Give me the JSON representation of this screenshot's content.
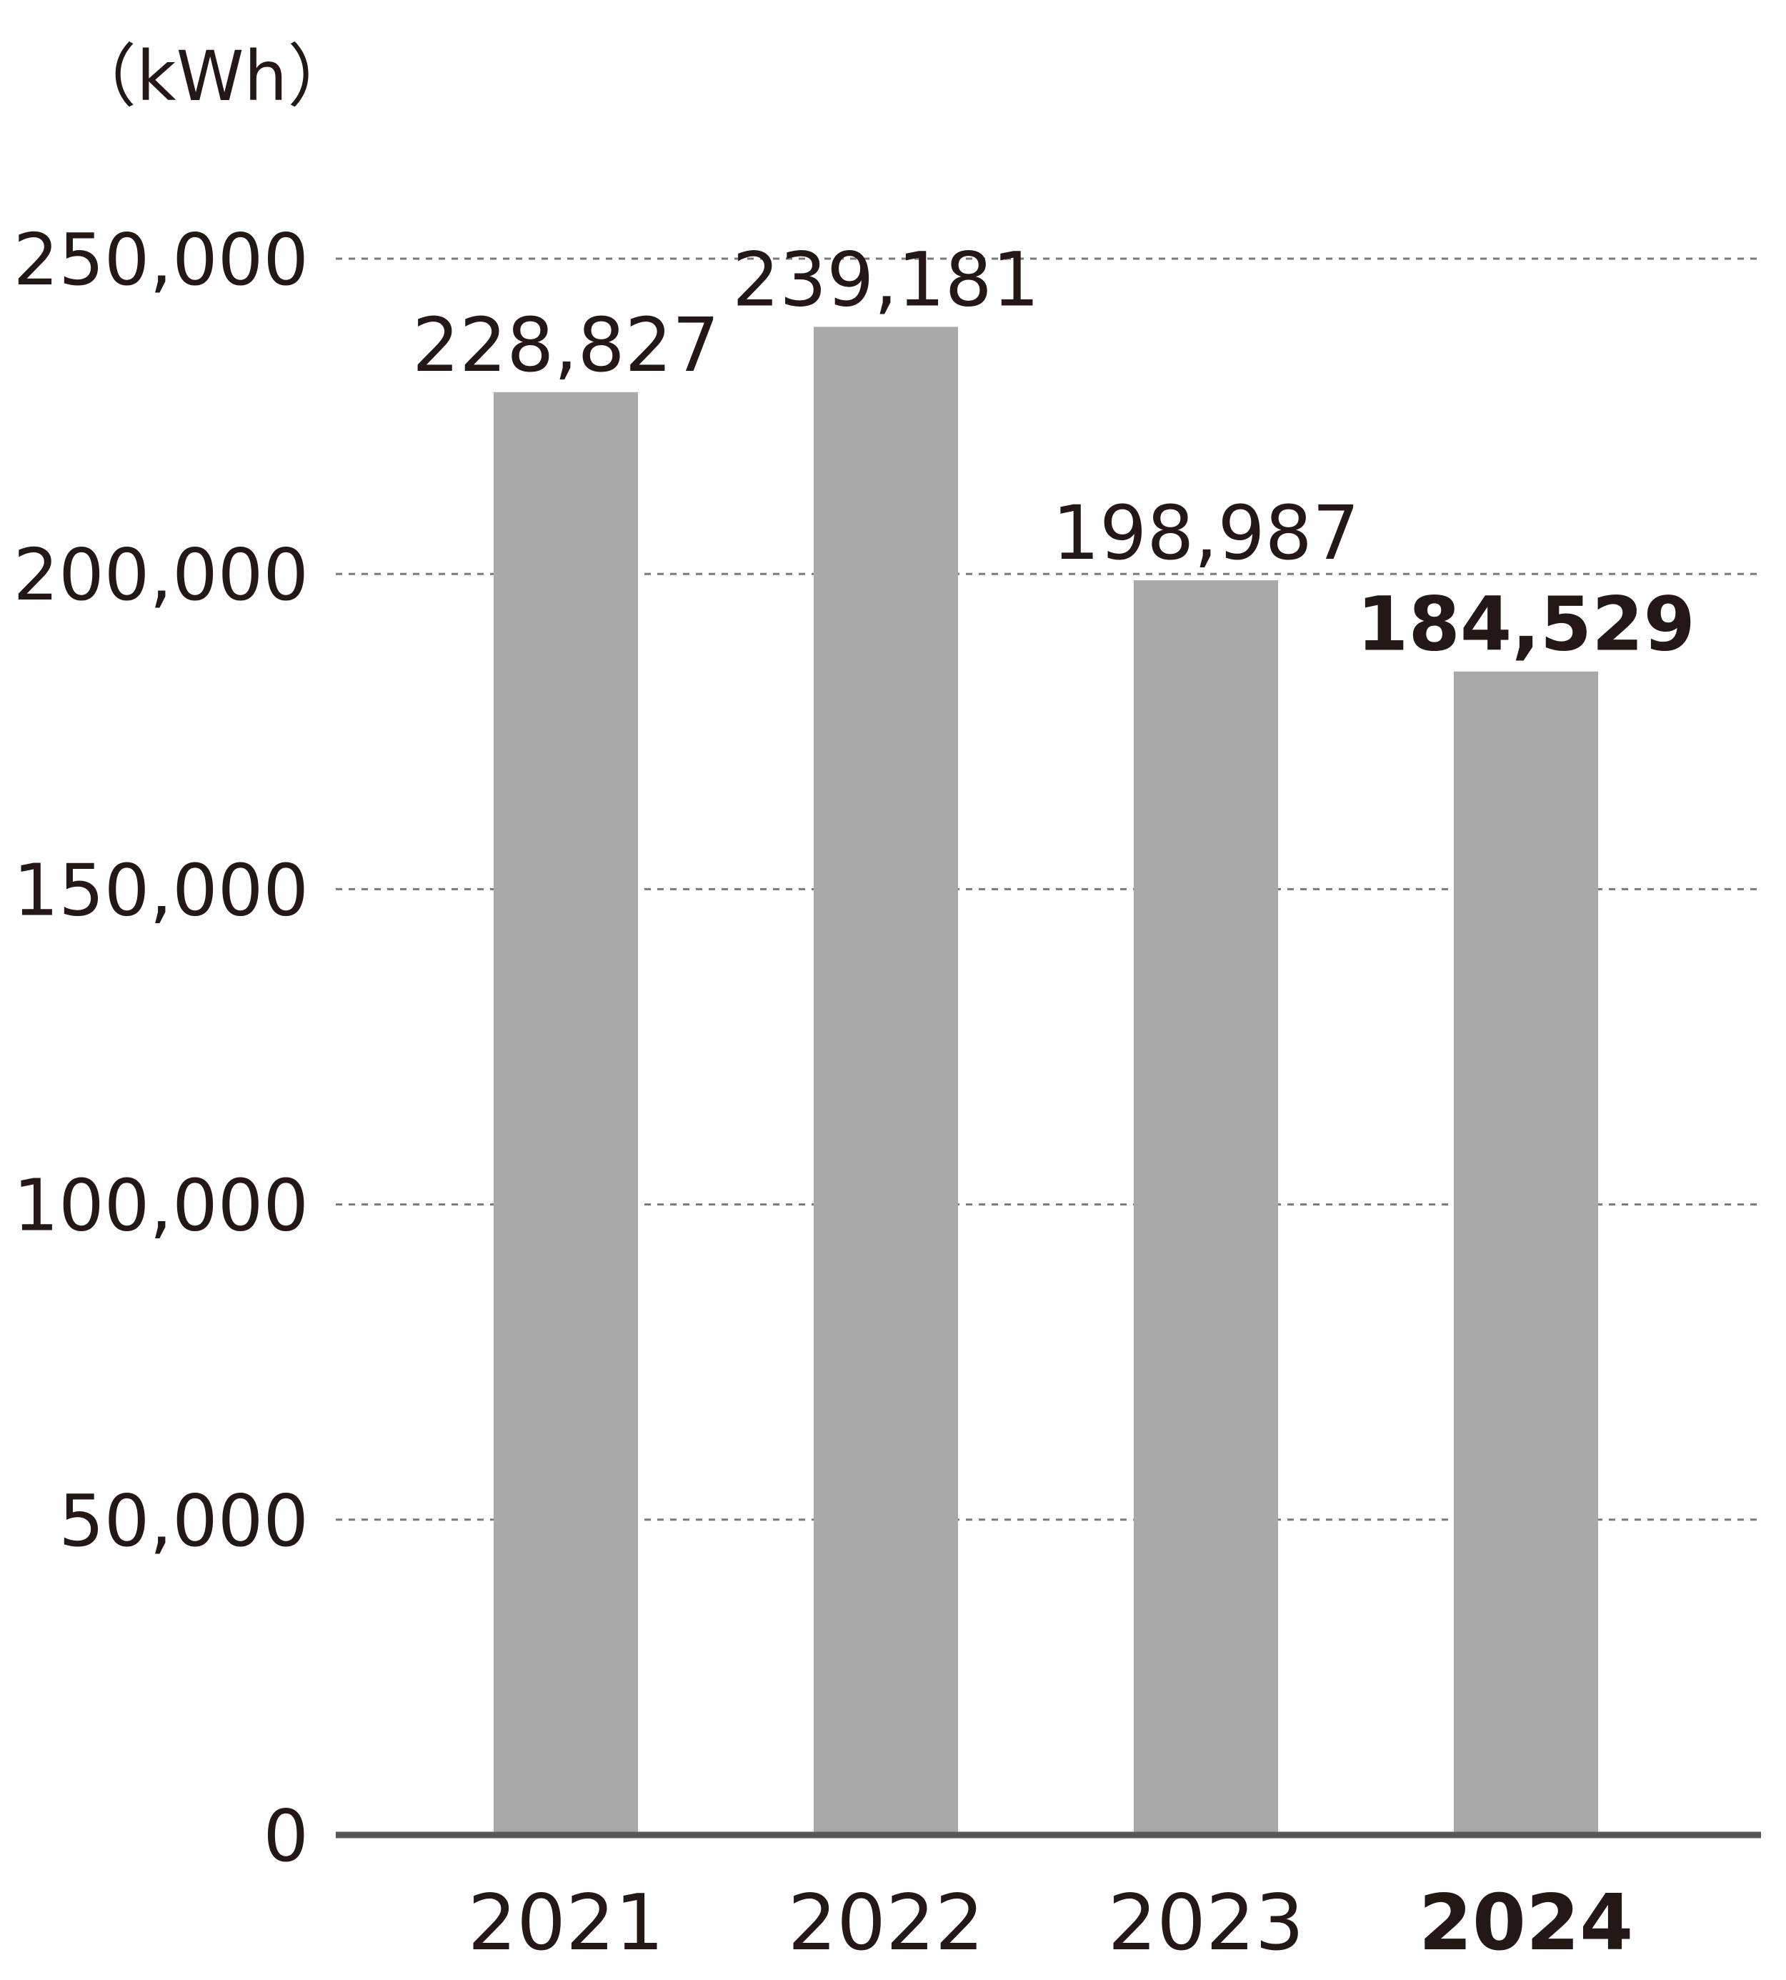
{
  "chart_data": {
    "type": "bar",
    "unit_label": "（kWh）",
    "categories": [
      "2021",
      "2022",
      "2023",
      "2024"
    ],
    "values": [
      228827,
      239181,
      198987,
      184529
    ],
    "value_labels": [
      "228,827",
      "239,181",
      "198,987",
      "184,529"
    ],
    "emphasized_category": "2024",
    "ylim": [
      0,
      250000
    ],
    "y_ticks": [
      0,
      50000,
      100000,
      150000,
      200000,
      250000
    ],
    "y_tick_labels": [
      "0",
      "50,000",
      "100,000",
      "150,000",
      "200,000",
      "250,000"
    ],
    "grid": "dashed-horizontal",
    "colors": {
      "bar": "#a9a9a9",
      "axis": "#595757",
      "grid": "#7a7a7a",
      "text": "#231815"
    }
  }
}
